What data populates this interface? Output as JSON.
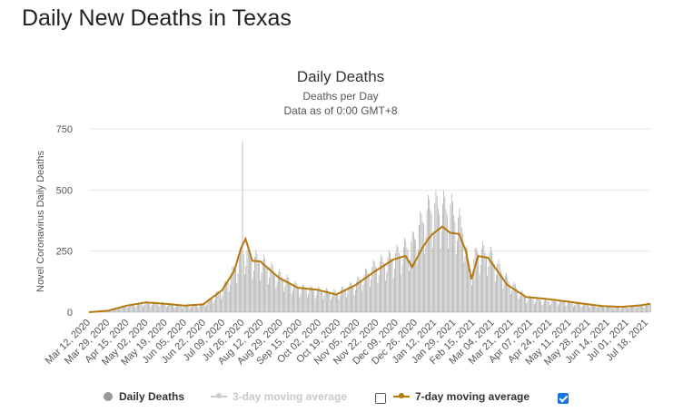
{
  "page": {
    "heading": "Daily New Deaths in Texas"
  },
  "chart_data": {
    "type": "bar",
    "title": "Daily Deaths",
    "subtitle_1": "Deaths per Day",
    "subtitle_2": "Data as of 0:00 GMT+8",
    "ylabel": "Novel Coronavirus Daily Deaths",
    "xlabel": "",
    "ylim": [
      0,
      750
    ],
    "yticks": [
      0,
      250,
      500,
      750
    ],
    "xlim": [
      "2020-03-12",
      "2021-07-27"
    ],
    "x_tick_labels": [
      "Mar 12, 2020",
      "Mar 29, 2020",
      "Apr 15, 2020",
      "May 02, 2020",
      "May 19, 2020",
      "Jun 05, 2020",
      "Jun 22, 2020",
      "Jul 09, 2020",
      "Jul 26, 2020",
      "Aug 12, 2020",
      "Aug 29, 2020",
      "Sep 15, 2020",
      "Oct 02, 2020",
      "Oct 19, 2020",
      "Nov 05, 2020",
      "Nov 22, 2020",
      "Dec 09, 2020",
      "Dec 26, 2020",
      "Jan 12, 2021",
      "Jan 29, 2021",
      "Feb 15, 2021",
      "Mar 04, 2021",
      "Mar 21, 2021",
      "Apr 07, 2021",
      "Apr 24, 2021",
      "May 11, 2021",
      "May 28, 2021",
      "Jun 14, 2021",
      "Jul 01, 2021",
      "Jul 18, 2021"
    ],
    "grid": true,
    "legend_position": "bottom",
    "series": [
      {
        "name": "Daily Deaths",
        "kind": "bar",
        "color": "#a6a6a6",
        "anchors": [
          [
            "2020-03-12",
            0
          ],
          [
            "2020-03-29",
            8
          ],
          [
            "2020-04-15",
            28
          ],
          [
            "2020-05-02",
            38
          ],
          [
            "2020-05-19",
            35
          ],
          [
            "2020-06-05",
            25
          ],
          [
            "2020-06-22",
            30
          ],
          [
            "2020-07-09",
            90
          ],
          [
            "2020-07-20",
            175
          ],
          [
            "2020-07-26",
            230
          ],
          [
            "2020-07-27",
            700
          ],
          [
            "2020-07-28",
            250
          ],
          [
            "2020-08-05",
            220
          ],
          [
            "2020-08-12",
            210
          ],
          [
            "2020-08-29",
            150
          ],
          [
            "2020-09-15",
            100
          ],
          [
            "2020-10-02",
            90
          ],
          [
            "2020-10-19",
            78
          ],
          [
            "2020-11-05",
            115
          ],
          [
            "2020-11-22",
            185
          ],
          [
            "2020-12-09",
            225
          ],
          [
            "2020-12-26",
            280
          ],
          [
            "2021-01-05",
            380
          ],
          [
            "2021-01-12",
            425
          ],
          [
            "2021-01-29",
            420
          ],
          [
            "2021-02-10",
            330
          ],
          [
            "2021-02-15",
            150
          ],
          [
            "2021-02-22",
            250
          ],
          [
            "2021-03-04",
            240
          ],
          [
            "2021-03-21",
            130
          ],
          [
            "2021-04-07",
            60
          ],
          [
            "2021-04-24",
            45
          ],
          [
            "2021-05-11",
            42
          ],
          [
            "2021-05-28",
            32
          ],
          [
            "2021-06-14",
            25
          ],
          [
            "2021-07-01",
            20
          ],
          [
            "2021-07-18",
            28
          ],
          [
            "2021-07-27",
            35
          ]
        ]
      },
      {
        "name": "3-day moving average",
        "kind": "line",
        "color": "#cccccc",
        "visible": false
      },
      {
        "name": "7-day moving average",
        "kind": "line",
        "color": "#b5790e",
        "visible": true,
        "points": [
          [
            "2020-03-12",
            0
          ],
          [
            "2020-03-29",
            6
          ],
          [
            "2020-04-15",
            27
          ],
          [
            "2020-05-02",
            40
          ],
          [
            "2020-05-19",
            34
          ],
          [
            "2020-06-05",
            27
          ],
          [
            "2020-06-22",
            32
          ],
          [
            "2020-07-09",
            90
          ],
          [
            "2020-07-20",
            170
          ],
          [
            "2020-07-26",
            262
          ],
          [
            "2020-07-30",
            300
          ],
          [
            "2020-08-05",
            210
          ],
          [
            "2020-08-12",
            208
          ],
          [
            "2020-08-29",
            140
          ],
          [
            "2020-09-15",
            100
          ],
          [
            "2020-10-02",
            92
          ],
          [
            "2020-10-19",
            72
          ],
          [
            "2020-11-05",
            110
          ],
          [
            "2020-11-22",
            165
          ],
          [
            "2020-12-09",
            215
          ],
          [
            "2020-12-20",
            230
          ],
          [
            "2020-12-26",
            185
          ],
          [
            "2021-01-05",
            270
          ],
          [
            "2021-01-12",
            315
          ],
          [
            "2021-01-22",
            350
          ],
          [
            "2021-01-29",
            325
          ],
          [
            "2021-02-06",
            320
          ],
          [
            "2021-02-12",
            250
          ],
          [
            "2021-02-17",
            135
          ],
          [
            "2021-02-23",
            230
          ],
          [
            "2021-03-04",
            222
          ],
          [
            "2021-03-21",
            112
          ],
          [
            "2021-04-07",
            62
          ],
          [
            "2021-04-24",
            55
          ],
          [
            "2021-05-11",
            45
          ],
          [
            "2021-05-28",
            35
          ],
          [
            "2021-06-14",
            25
          ],
          [
            "2021-07-01",
            22
          ],
          [
            "2021-07-18",
            28
          ],
          [
            "2021-07-27",
            34
          ]
        ]
      }
    ]
  },
  "legend": {
    "daily_deaths": "Daily Deaths",
    "ma3": "3-day moving average",
    "ma7": "7-day moving average"
  }
}
